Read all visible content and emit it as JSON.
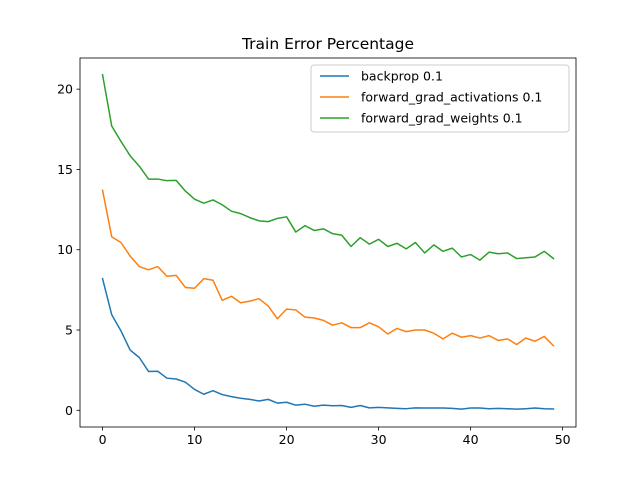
{
  "chart_data": {
    "type": "line",
    "title": "Train Error Percentage",
    "xlabel": "",
    "ylabel": "",
    "xlim": [
      -2.45,
      51.45
    ],
    "ylim": [
      -1.04,
      21.94
    ],
    "xticks": [
      0,
      10,
      20,
      30,
      40,
      50
    ],
    "yticks": [
      0,
      5,
      10,
      15,
      20
    ],
    "grid": false,
    "legend_position": "top-right",
    "x": [
      0,
      1,
      2,
      3,
      4,
      5,
      6,
      7,
      8,
      9,
      10,
      11,
      12,
      13,
      14,
      15,
      16,
      17,
      18,
      19,
      20,
      21,
      22,
      23,
      24,
      25,
      26,
      27,
      28,
      29,
      30,
      31,
      32,
      33,
      34,
      35,
      36,
      37,
      38,
      39,
      40,
      41,
      42,
      43,
      44,
      45,
      46,
      47,
      48,
      49
    ],
    "series": [
      {
        "name": "backprop 0.1",
        "color": "#1f77b4",
        "values": [
          8.2,
          5.95,
          4.95,
          3.75,
          3.28,
          2.42,
          2.43,
          2.0,
          1.95,
          1.75,
          1.3,
          1.0,
          1.22,
          0.98,
          0.85,
          0.75,
          0.68,
          0.58,
          0.68,
          0.45,
          0.5,
          0.32,
          0.38,
          0.25,
          0.32,
          0.28,
          0.3,
          0.18,
          0.3,
          0.15,
          0.18,
          0.15,
          0.12,
          0.1,
          0.15,
          0.14,
          0.14,
          0.14,
          0.12,
          0.07,
          0.14,
          0.14,
          0.1,
          0.12,
          0.1,
          0.07,
          0.1,
          0.14,
          0.1,
          0.08
        ]
      },
      {
        "name": "forward_grad_activations 0.1",
        "color": "#ff7f0e",
        "values": [
          13.7,
          10.8,
          10.45,
          9.6,
          8.95,
          8.75,
          8.95,
          8.35,
          8.4,
          7.65,
          7.6,
          8.2,
          8.1,
          6.85,
          7.1,
          6.7,
          6.8,
          6.95,
          6.5,
          5.7,
          6.3,
          6.25,
          5.8,
          5.75,
          5.6,
          5.3,
          5.45,
          5.15,
          5.15,
          5.45,
          5.2,
          4.75,
          5.1,
          4.9,
          5.0,
          5.0,
          4.8,
          4.45,
          4.8,
          4.55,
          4.65,
          4.5,
          4.65,
          4.35,
          4.45,
          4.1,
          4.5,
          4.3,
          4.6,
          4.02
        ]
      },
      {
        "name": "forward_grad_weights 0.1",
        "color": "#2ca02c",
        "values": [
          20.9,
          17.7,
          16.75,
          15.85,
          15.2,
          14.4,
          14.4,
          14.3,
          14.32,
          13.65,
          13.15,
          12.9,
          13.1,
          12.8,
          12.4,
          12.25,
          12.0,
          11.8,
          11.75,
          11.95,
          12.05,
          11.1,
          11.5,
          11.2,
          11.3,
          11.0,
          10.9,
          10.2,
          10.75,
          10.35,
          10.65,
          10.2,
          10.4,
          10.05,
          10.45,
          9.8,
          10.3,
          9.9,
          10.1,
          9.55,
          9.7,
          9.35,
          9.85,
          9.75,
          9.8,
          9.45,
          9.5,
          9.55,
          9.9,
          9.45
        ]
      }
    ]
  }
}
